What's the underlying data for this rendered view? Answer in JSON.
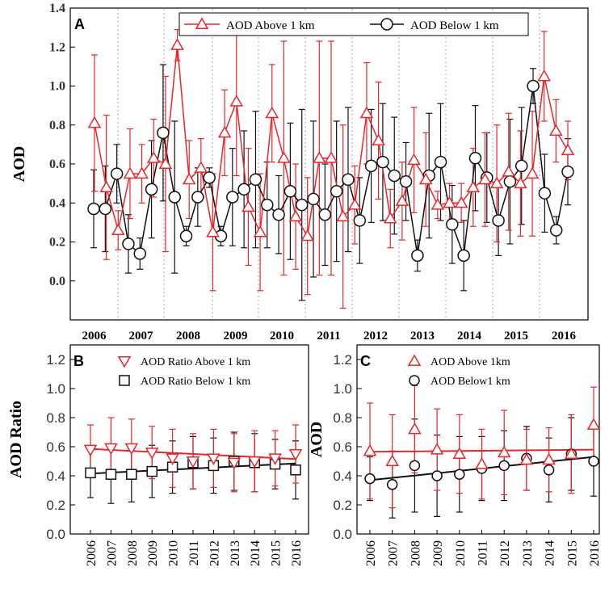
{
  "chart_data": [
    {
      "panel": "A",
      "type": "line",
      "ylabel": "AOD",
      "ylim": [
        -0.2,
        1.4
      ],
      "yticks": [
        "0.0",
        "0.2",
        "0.4",
        "0.6",
        "0.8",
        "1.0",
        "1.2",
        "1.4"
      ],
      "year_labels": [
        "2006",
        "2007",
        "2008",
        "2009",
        "2010",
        "2011",
        "2012",
        "2013",
        "2014",
        "2015",
        "2016"
      ],
      "legend": [
        "AOD Above 1 km",
        "AOD Below 1 km"
      ],
      "colors": {
        "above": "#e8262b",
        "below": "#111111"
      },
      "series": [
        {
          "name": "AOD Above 1 km",
          "values": [
            0.81,
            0.48,
            0.26,
            0.55,
            0.55,
            0.63,
            0.6,
            1.21,
            0.52,
            0.58,
            0.25,
            0.76,
            0.92,
            0.38,
            0.25,
            0.86,
            0.63,
            0.33,
            0.23,
            0.63,
            0.63,
            0.33,
            0.39,
            0.86,
            0.72,
            0.32,
            0.41,
            0.62,
            0.52,
            0.39,
            0.4,
            0.4,
            0.48,
            0.52,
            0.5,
            0.56,
            0.5,
            0.55,
            1.05,
            0.77,
            0.67
          ],
          "err": [
            0.35,
            0.37,
            0.1,
            0.23,
            0.15,
            0.2,
            0.45,
            0.08,
            0.2,
            0.15,
            0.3,
            0.22,
            0.38,
            0.3,
            0.3,
            0.25,
            0.6,
            0.27,
            0.3,
            0.6,
            0.6,
            0.47,
            0.2,
            0.26,
            0.3,
            0.15,
            0.2,
            0.27,
            0.24,
            0.07,
            0.1,
            0.1,
            0.2,
            0.24,
            0.3,
            0.3,
            0.27,
            0.32,
            0.23,
            0.16,
            0.15
          ]
        },
        {
          "name": "AOD Below 1 km",
          "values": [
            0.37,
            0.37,
            0.55,
            0.19,
            0.14,
            0.47,
            0.76,
            0.43,
            0.23,
            0.43,
            0.53,
            0.23,
            0.43,
            0.47,
            0.52,
            0.39,
            0.34,
            0.46,
            0.39,
            0.42,
            0.34,
            0.46,
            0.52,
            0.31,
            0.59,
            0.61,
            0.54,
            0.51,
            0.13,
            0.54,
            0.61,
            0.29,
            0.13,
            0.63,
            0.53,
            0.31,
            0.51,
            0.59,
            1.0,
            0.45,
            0.26,
            0.56
          ],
          "err": [
            0.2,
            0.22,
            0.15,
            0.15,
            0.08,
            0.25,
            0.35,
            0.39,
            0.05,
            0.15,
            0.05,
            0.05,
            0.25,
            0.3,
            0.35,
            0.22,
            0.2,
            0.35,
            0.49,
            0.4,
            0.26,
            0.36,
            0.37,
            0.22,
            0.29,
            0.3,
            0.3,
            0.2,
            0.08,
            0.32,
            0.3,
            0.2,
            0.18,
            0.27,
            0.23,
            0.18,
            0.32,
            0.3,
            0.09,
            0.2,
            0.07,
            0.17
          ]
        }
      ]
    },
    {
      "panel": "B",
      "type": "scatter",
      "ylabel": "AOD Ratio",
      "ylim": [
        0.0,
        1.3
      ],
      "yticks": [
        "0.0",
        "0.2",
        "0.4",
        "0.6",
        "0.8",
        "1.0",
        "1.2"
      ],
      "categories": [
        "2006",
        "2007",
        "2008",
        "2009",
        "2010",
        "2011",
        "2012",
        "2013",
        "2014",
        "2015",
        "2016"
      ],
      "legend": [
        "AOD Ratio Above 1 km",
        "AOD Ratio Below 1 km"
      ],
      "series": [
        {
          "name": "AOD Ratio Above 1 km",
          "values": [
            0.58,
            0.59,
            0.59,
            0.56,
            0.52,
            0.5,
            0.52,
            0.49,
            0.5,
            0.52,
            0.55
          ],
          "err": [
            0.17,
            0.21,
            0.2,
            0.18,
            0.2,
            0.19,
            0.2,
            0.2,
            0.21,
            0.19,
            0.2
          ],
          "trend": [
            0.585,
            0.515
          ]
        },
        {
          "name": "AOD Ratio Below 1 km",
          "values": [
            0.42,
            0.41,
            0.41,
            0.43,
            0.46,
            0.49,
            0.47,
            0.5,
            0.49,
            0.48,
            0.44
          ],
          "err": [
            0.17,
            0.2,
            0.19,
            0.18,
            0.18,
            0.18,
            0.19,
            0.2,
            0.2,
            0.17,
            0.2
          ],
          "trend": [
            0.415,
            0.485
          ]
        }
      ]
    },
    {
      "panel": "C",
      "type": "scatter",
      "ylabel": "AOD",
      "ylim": [
        0.0,
        1.3
      ],
      "yticks": [
        "0.0",
        "0.2",
        "0.4",
        "0.6",
        "0.8",
        "1.0",
        "1.2"
      ],
      "categories": [
        "2006",
        "2007",
        "2008",
        "2009",
        "2010",
        "2011",
        "2012",
        "2013",
        "2014",
        "2015",
        "2016"
      ],
      "legend": [
        "AOD Above 1km",
        "AOD Below1 km"
      ],
      "series": [
        {
          "name": "AOD Above 1km",
          "values": [
            0.57,
            0.5,
            0.72,
            0.58,
            0.55,
            0.48,
            0.56,
            0.51,
            0.51,
            0.55,
            0.75
          ],
          "err": [
            0.33,
            0.32,
            0.3,
            0.28,
            0.27,
            0.24,
            0.29,
            0.21,
            0.22,
            0.27,
            0.26
          ],
          "trend": [
            0.565,
            0.58
          ]
        },
        {
          "name": "AOD Below1 km",
          "values": [
            0.38,
            0.34,
            0.47,
            0.4,
            0.41,
            0.45,
            0.47,
            0.52,
            0.44,
            0.55,
            0.5
          ],
          "err": [
            0.15,
            0.23,
            0.32,
            0.28,
            0.26,
            0.22,
            0.24,
            0.22,
            0.22,
            0.25,
            0.24
          ],
          "trend": [
            0.37,
            0.53
          ]
        }
      ]
    }
  ],
  "labels": {
    "a": "A",
    "b": "B",
    "c": "C"
  }
}
